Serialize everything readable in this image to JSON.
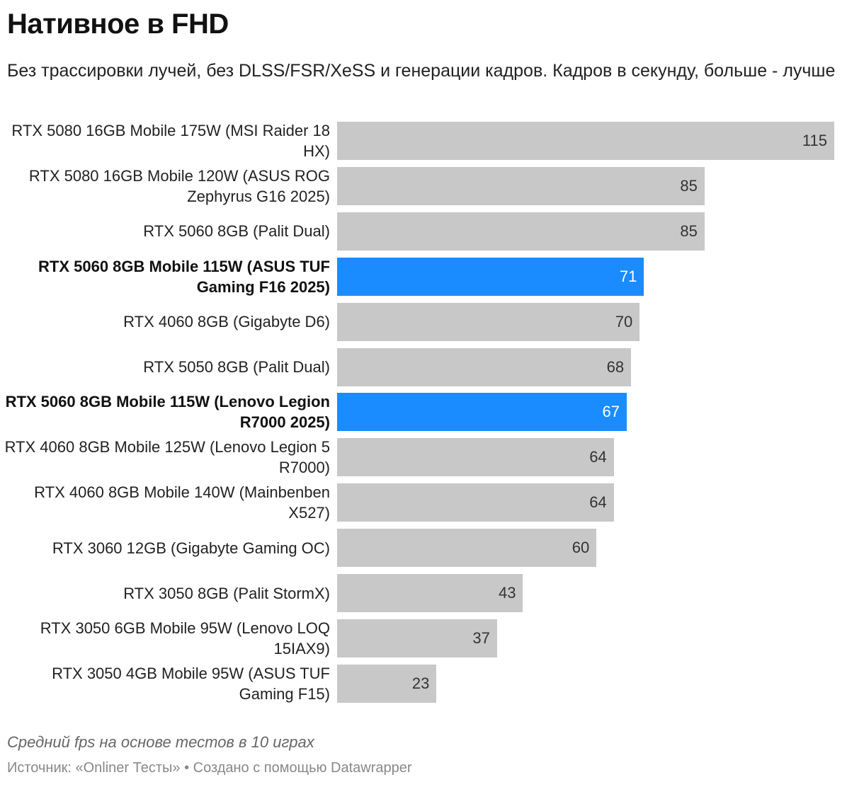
{
  "chart_data": {
    "type": "bar",
    "orientation": "horizontal",
    "title": "Нативное в FHD",
    "subtitle": "Без трассировки лучей, без DLSS/FSR/XeSS и генерации кадров. Кадров в секунду, больше - лучше",
    "categories": [
      "RTX 5080 16GB Mobile 175W (MSI Raider 18 HX)",
      "RTX 5080 16GB Mobile 120W (ASUS ROG Zephyrus G16 2025)",
      "RTX 5060 8GB (Palit Dual)",
      "RTX 5060 8GB Mobile 115W (ASUS TUF Gaming F16 2025)",
      "RTX 4060 8GB (Gigabyte D6)",
      "RTX 5050 8GB (Palit Dual)",
      "RTX 5060 8GB Mobile 115W (Lenovo Legion R7000 2025)",
      "RTX 4060 8GB Mobile 125W (Lenovo Legion 5 R7000)",
      "RTX 4060 8GB Mobile 140W (Mainbenben X527)",
      "RTX 3060 12GB (Gigabyte Gaming OC)",
      "RTX 3050 8GB (Palit StormX)",
      "RTX 3050 6GB Mobile 95W (Lenovo LOQ 15IAX9)",
      "RTX 3050 4GB Mobile 95W (ASUS TUF Gaming F15)"
    ],
    "values": [
      115,
      85,
      85,
      71,
      70,
      68,
      67,
      64,
      64,
      60,
      43,
      37,
      23
    ],
    "highlighted": [
      false,
      false,
      false,
      true,
      false,
      false,
      true,
      false,
      false,
      false,
      false,
      false,
      false
    ],
    "xlim": [
      0,
      115
    ],
    "colors": {
      "default": "#c8c8c8",
      "highlight": "#1a8cff"
    },
    "notes": "Средний fps на основе тестов в 10 играх",
    "source": "Источник: «Onliner Тесты» • Создано с помощью Datawrapper"
  }
}
